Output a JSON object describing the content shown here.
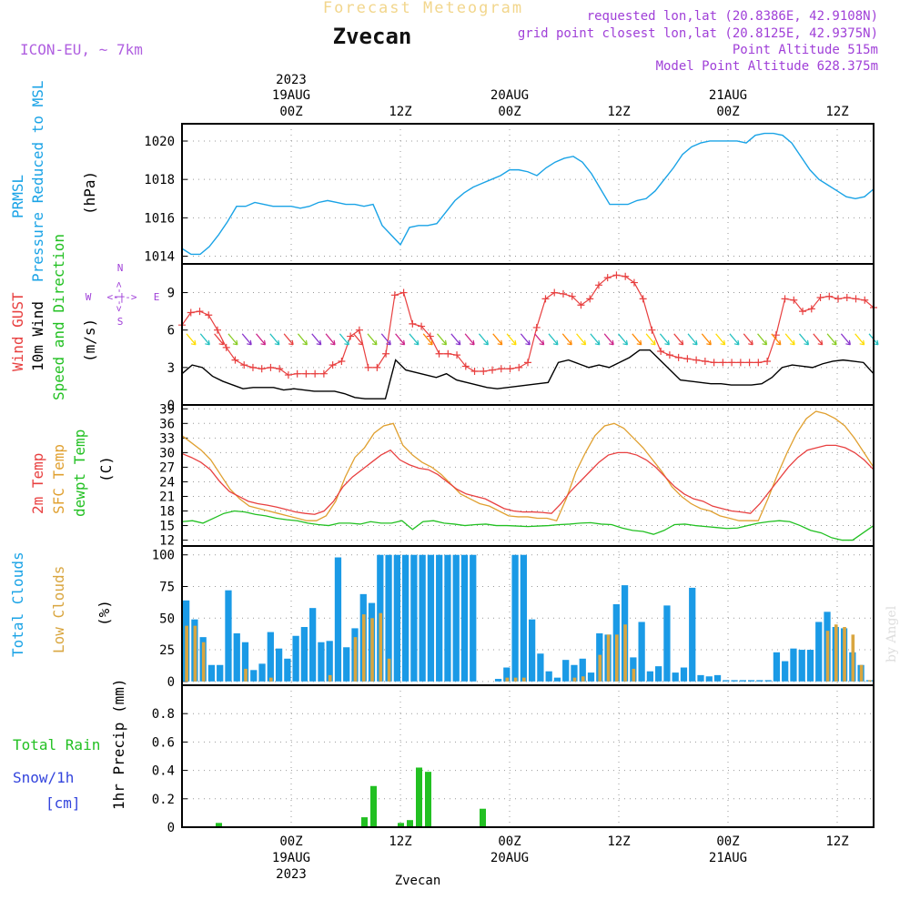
{
  "header": {
    "subtitle": "Forecast Meteogram",
    "station": "Zvecan",
    "model": "ICON-EU, ~ 7km",
    "info": [
      "requested lon,lat (20.8386E, 42.9108N)",
      "grid point closest lon,lat (20.8125E, 42.9375N)",
      "Point Altitude 515m",
      "Model Point Altitude 628.375m"
    ]
  },
  "top_time_labels": [
    {
      "l1": "2023",
      "l2": "19AUG",
      "l3": "00Z",
      "x": 12
    },
    {
      "l1": "",
      "l2": "",
      "l3": "12Z",
      "x": 24
    },
    {
      "l1": "",
      "l2": "20AUG",
      "l3": "00Z",
      "x": 36
    },
    {
      "l1": "",
      "l2": "",
      "l3": "12Z",
      "x": 48
    },
    {
      "l1": "",
      "l2": "21AUG",
      "l3": "00Z",
      "x": 60
    },
    {
      "l1": "",
      "l2": "",
      "l3": "12Z",
      "x": 72
    }
  ],
  "bottom_time_labels": [
    {
      "l1": "00Z",
      "l2": "19AUG",
      "l3": "2023",
      "x": 12
    },
    {
      "l1": "12Z",
      "l2": "",
      "l3": "",
      "x": 24
    },
    {
      "l1": "00Z",
      "l2": "20AUG",
      "l3": "",
      "x": 36
    },
    {
      "l1": "12Z",
      "l2": "",
      "l3": "",
      "x": 48
    },
    {
      "l1": "00Z",
      "l2": "21AUG",
      "l3": "",
      "x": 60
    },
    {
      "l1": "12Z",
      "l2": "",
      "l3": "",
      "x": 72
    }
  ],
  "footer_station": "Zvecan",
  "watermark": "by Angel",
  "compass": {
    "n": "N",
    "s": "S",
    "w": "W",
    "e": "E"
  },
  "colors": {
    "pressure": "#1aa3e6",
    "gust": "#e84040",
    "wind10m": "#000000",
    "temp2m": "#e84040",
    "sfc": "#e0a030",
    "dewpt": "#22c022",
    "totalcloud": "#1a9ae6",
    "lowcloud": "#d9a640",
    "rain": "#22c022",
    "snow": "#3344dd",
    "purple": "#a040d8"
  },
  "panels": {
    "pressure": {
      "label_a": "PRMSL",
      "label_b": "Pressure Reduced to MSL",
      "unit": "(hPa)"
    },
    "wind": {
      "label_gust": "Wind GUST",
      "label_10m": "10m Wind",
      "label_dir": "Speed and Direction",
      "unit": "(m/s)"
    },
    "temp": {
      "label_2m": "2m Temp",
      "label_sfc": "SFC Temp",
      "label_dew": "dewpt Temp",
      "unit": "(C)"
    },
    "clouds": {
      "label_total": "Total Clouds",
      "label_low": "Low Clouds",
      "unit": "(%)"
    },
    "precip": {
      "label_rain": "Total  Rain",
      "label_snow": "Snow/1h",
      "label_cm": "[cm]",
      "unit": "1hr Precip (mm)"
    }
  },
  "chart_data": [
    {
      "type": "line",
      "name": "PRMSL",
      "ylabel": "(hPa)",
      "ylim": [
        1013.6,
        1020.9
      ],
      "yticks": [
        1014,
        1016,
        1018,
        1020
      ],
      "x_hours": [
        0,
        1,
        2,
        3,
        4,
        5,
        6,
        7,
        8,
        9,
        10,
        11,
        12,
        13,
        14,
        15,
        16,
        17,
        18,
        19,
        20,
        21,
        22,
        23,
        24,
        25,
        26,
        27,
        28,
        29,
        30,
        31,
        32,
        33,
        34,
        35,
        36,
        37,
        38,
        39,
        40,
        41,
        42,
        43,
        44,
        45,
        46,
        47,
        48,
        49,
        50,
        51,
        52,
        53,
        54,
        55,
        56,
        57,
        58,
        59,
        60,
        61,
        62,
        63,
        64,
        65,
        66,
        67,
        68,
        69,
        70,
        71,
        72,
        73,
        74,
        75,
        76
      ],
      "values": [
        1014.4,
        1014.1,
        1014.1,
        1014.5,
        1015.1,
        1015.8,
        1016.6,
        1016.6,
        1016.8,
        1016.7,
        1016.6,
        1016.6,
        1016.6,
        1016.5,
        1016.6,
        1016.8,
        1016.9,
        1016.8,
        1016.7,
        1016.7,
        1016.6,
        1016.7,
        1015.6,
        1015.1,
        1014.6,
        1015.5,
        1015.6,
        1015.6,
        1015.7,
        1016.3,
        1016.9,
        1017.3,
        1017.6,
        1017.8,
        1018.0,
        1018.2,
        1018.5,
        1018.5,
        1018.4,
        1018.2,
        1018.6,
        1018.9,
        1019.1,
        1019.2,
        1018.9,
        1018.3,
        1017.5,
        1016.7,
        1016.7,
        1016.7,
        1016.9,
        1017.0,
        1017.4,
        1018.0,
        1018.6,
        1019.3,
        1019.7,
        1019.9,
        1020.0,
        1020.0,
        1020.0,
        1020.0,
        1019.9,
        1020.3,
        1020.4,
        1020.4,
        1020.3,
        1019.9,
        1019.2,
        1018.5,
        1018.0,
        1017.7,
        1017.4,
        1017.1,
        1017.0,
        1017.1,
        1017.5
      ]
    },
    {
      "type": "line",
      "name": "Wind",
      "ylabel": "(m/s)",
      "ylim": [
        0,
        11.3
      ],
      "yticks": [
        0,
        3,
        6,
        9
      ],
      "gust": [
        6.4,
        7.4,
        7.5,
        7.2,
        6.0,
        4.6,
        3.6,
        3.2,
        3.0,
        2.9,
        3.0,
        2.9,
        2.4,
        2.5,
        2.5,
        2.5,
        2.5,
        3.2,
        3.5,
        5.5,
        6.0,
        3.0,
        3.0,
        4.1,
        8.8,
        9.0,
        6.5,
        6.3,
        5.5,
        4.1,
        4.1,
        4.0,
        3.1,
        2.7,
        2.7,
        2.8,
        2.9,
        2.9,
        3.0,
        3.4,
        6.2,
        8.5,
        9.0,
        8.9,
        8.7,
        8.0,
        8.5,
        9.6,
        10.2,
        10.4,
        10.3,
        9.8,
        8.5,
        6.0,
        4.3,
        4.0,
        3.8,
        3.7,
        3.6,
        3.5,
        3.4,
        3.4,
        3.4,
        3.4,
        3.4,
        3.4,
        3.5,
        5.6,
        8.5,
        8.4,
        7.5,
        7.7,
        8.6,
        8.7,
        8.5,
        8.6,
        8.5,
        8.4,
        7.8
      ],
      "wind10m": [
        2.5,
        3.2,
        3.0,
        2.3,
        1.9,
        1.6,
        1.3,
        1.4,
        1.4,
        1.4,
        1.2,
        1.3,
        1.2,
        1.1,
        1.1,
        1.1,
        0.9,
        0.6,
        0.5,
        0.5,
        0.5,
        3.6,
        2.8,
        2.6,
        2.4,
        2.2,
        2.5,
        2.0,
        1.8,
        1.6,
        1.4,
        1.3,
        1.4,
        1.5,
        1.6,
        1.7,
        1.8,
        3.4,
        3.6,
        3.3,
        3.0,
        3.2,
        3.0,
        3.4,
        3.8,
        4.4,
        4.4,
        3.6,
        2.8,
        2.0,
        1.9,
        1.8,
        1.7,
        1.7,
        1.6,
        1.6,
        1.6,
        1.7,
        2.2,
        3.0,
        3.2,
        3.1,
        3.0,
        3.3,
        3.5,
        3.6,
        3.5,
        3.4,
        2.5
      ]
    },
    {
      "type": "line",
      "name": "Temperature",
      "ylabel": "(C)",
      "ylim": [
        10.8,
        39.8
      ],
      "yticks": [
        12,
        15,
        18,
        21,
        24,
        27,
        30,
        33,
        36,
        39
      ],
      "temp2m": [
        29.8,
        29.0,
        28.0,
        26.5,
        24.0,
        22.0,
        21.0,
        20.0,
        19.5,
        19.2,
        18.8,
        18.3,
        17.8,
        17.5,
        17.3,
        18.0,
        20.0,
        23.0,
        25.0,
        26.5,
        28.0,
        29.5,
        30.5,
        28.5,
        27.5,
        26.8,
        26.5,
        25.5,
        24.0,
        22.5,
        21.5,
        21.0,
        20.5,
        19.5,
        18.5,
        18.0,
        17.8,
        17.8,
        17.7,
        17.5,
        19.5,
        22.0,
        24.0,
        26.0,
        28.0,
        29.5,
        30.0,
        30.0,
        29.5,
        28.5,
        27.0,
        25.0,
        23.0,
        21.5,
        20.5,
        20.0,
        19.0,
        18.5,
        18.0,
        17.8,
        17.5,
        19.5,
        22.0,
        24.5,
        27.0,
        29.0,
        30.5,
        31.0,
        31.5,
        31.5,
        31.0,
        30.0,
        28.5,
        26.5
      ],
      "sfc": [
        33.5,
        32.0,
        30.5,
        28.5,
        25.5,
        22.5,
        20.5,
        19.0,
        18.5,
        18.0,
        17.5,
        17.0,
        16.5,
        16.0,
        16.0,
        17.0,
        20.0,
        25.0,
        29.0,
        31.0,
        34.0,
        35.5,
        36.0,
        31.5,
        29.5,
        28.0,
        27.0,
        25.5,
        23.5,
        21.5,
        20.5,
        19.5,
        19.0,
        18.0,
        17.0,
        16.8,
        16.8,
        16.5,
        16.5,
        16.0,
        20.5,
        26.0,
        30.0,
        33.5,
        35.5,
        36.0,
        35.0,
        33.0,
        31.0,
        28.5,
        26.0,
        23.0,
        21.0,
        19.5,
        18.5,
        18.0,
        17.0,
        16.5,
        16.0,
        16.0,
        16.0,
        20.5,
        25.5,
        30.0,
        34.0,
        37.0,
        38.5,
        38.0,
        37.0,
        35.5,
        33.0,
        30.0,
        27.0
      ],
      "dewpt": [
        15.8,
        16.0,
        15.5,
        16.5,
        17.5,
        18.0,
        17.8,
        17.3,
        17.0,
        16.5,
        16.2,
        16.0,
        15.5,
        15.2,
        15.0,
        15.5,
        15.5,
        15.3,
        15.8,
        15.5,
        15.5,
        16.0,
        14.2,
        15.8,
        16.0,
        15.5,
        15.3,
        15.0,
        15.2,
        15.3,
        15.0,
        15.0,
        14.9,
        14.8,
        14.9,
        15.0,
        15.2,
        15.3,
        15.5,
        15.6,
        15.3,
        15.2,
        14.5,
        14.0,
        13.8,
        13.2,
        14.0,
        15.2,
        15.3,
        15.0,
        14.8,
        14.6,
        14.4,
        14.5,
        15.0,
        15.5,
        15.8,
        16.0,
        15.8,
        15.0,
        14.0,
        13.5,
        12.5,
        12.0,
        12.0,
        13.5,
        15.0
      ]
    },
    {
      "type": "bar",
      "name": "Clouds",
      "ylabel": "(%)",
      "ylim": [
        -3,
        107
      ],
      "yticks": [
        0,
        25,
        50,
        75,
        100
      ],
      "total": [
        64,
        49,
        35,
        13,
        13,
        72,
        38,
        31,
        9,
        14,
        39,
        26,
        18,
        36,
        43,
        58,
        31,
        32,
        98,
        27,
        42,
        69,
        62,
        100,
        100,
        100,
        100,
        100,
        100,
        100,
        100,
        100,
        100,
        100,
        100,
        0,
        0,
        2,
        11,
        100,
        100,
        49,
        22,
        8,
        3,
        17,
        13,
        18,
        7,
        38,
        37,
        61,
        76,
        19,
        47,
        8,
        12,
        60,
        7,
        11,
        74,
        5,
        4,
        5,
        1,
        1,
        1,
        1,
        1,
        1,
        23,
        16,
        26,
        25,
        25,
        47,
        55,
        43,
        42,
        23,
        13,
        1
      ],
      "low": [
        44,
        44,
        31,
        0,
        0,
        0,
        0,
        10,
        0,
        0,
        3,
        0,
        0,
        0,
        0,
        0,
        0,
        5,
        0,
        0,
        35,
        53,
        50,
        54,
        18,
        0,
        0,
        0,
        0,
        0,
        0,
        0,
        0,
        0,
        0,
        0,
        0,
        0,
        3,
        3,
        3,
        0,
        0,
        0,
        0,
        0,
        3,
        4,
        0,
        21,
        37,
        37,
        45,
        10,
        0,
        0,
        0,
        0,
        0,
        0,
        0,
        0,
        0,
        0,
        0,
        0,
        0,
        0,
        0,
        0,
        0,
        0,
        0,
        0,
        0,
        0,
        40,
        45,
        43,
        37,
        13,
        1
      ]
    },
    {
      "type": "bar",
      "name": "1hr Precip",
      "ylabel": "1hr Precip (mm)",
      "ylim": [
        0,
        1.0
      ],
      "yticks": [
        0,
        0.2,
        0.4,
        0.6,
        0.8
      ],
      "rain": [
        [
          4,
          0.03
        ],
        [
          20,
          0.07
        ],
        [
          21,
          0.29
        ],
        [
          24,
          0.03
        ],
        [
          25,
          0.05
        ],
        [
          26,
          0.42
        ],
        [
          27,
          0.39
        ],
        [
          33,
          0.13
        ]
      ]
    }
  ]
}
